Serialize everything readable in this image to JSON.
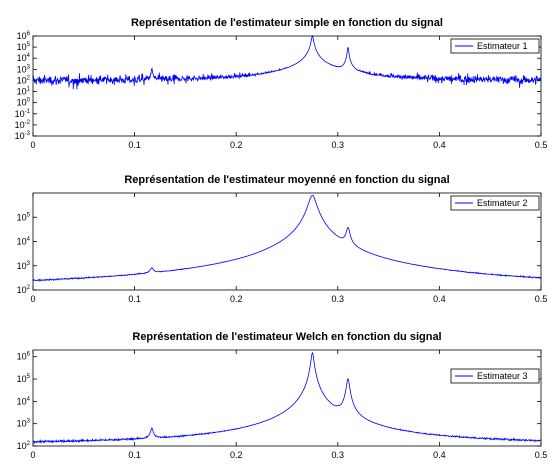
{
  "chart_data": [
    {
      "type": "line",
      "title": "Représentation de l'estimateur simple en fonction du signal",
      "xlabel": "",
      "ylabel": "",
      "xlim": [
        0,
        0.5
      ],
      "ylim": [
        0.001,
        1000000
      ],
      "yscale": "log",
      "grid": false,
      "legend_position": "top-right",
      "xticks": [
        "0",
        "0.1",
        "0.2",
        "0.3",
        "0.4",
        "0.5"
      ],
      "yticks": [
        {
          "base": "10",
          "exp": "-3",
          "value": 0.001
        },
        {
          "base": "10",
          "exp": "-2",
          "value": 0.01
        },
        {
          "base": "10",
          "exp": "-1",
          "value": 0.1
        },
        {
          "base": "10",
          "exp": "0",
          "value": 1
        },
        {
          "base": "10",
          "exp": "1",
          "value": 10
        },
        {
          "base": "10",
          "exp": "2",
          "value": 100
        },
        {
          "base": "10",
          "exp": "3",
          "value": 1000
        },
        {
          "base": "10",
          "exp": "4",
          "value": 10000
        },
        {
          "base": "10",
          "exp": "5",
          "value": 100000
        },
        {
          "base": "10",
          "exp": "6",
          "value": 1000000
        }
      ],
      "series": [
        {
          "name": "Estimateur 1",
          "color": "#0000ff",
          "noise_floor": 100,
          "noise_style": "raw",
          "peaks": [
            {
              "x": 0.117,
              "y": 1000
            },
            {
              "x": 0.275,
              "y": 1000000
            },
            {
              "x": 0.31,
              "y": 100000
            }
          ]
        }
      ]
    },
    {
      "type": "line",
      "title": "Représentation de l'estimateur moyenné en fonction du signal",
      "xlabel": "",
      "ylabel": "",
      "xlim": [
        0,
        0.5
      ],
      "ylim": [
        100,
        1000000
      ],
      "yscale": "log",
      "grid": false,
      "legend_position": "top-right",
      "xticks": [
        "0",
        "0.1",
        "0.2",
        "0.3",
        "0.4",
        "0.5"
      ],
      "yticks": [
        {
          "base": "10",
          "exp": "2",
          "value": 100
        },
        {
          "base": "10",
          "exp": "3",
          "value": 1000
        },
        {
          "base": "10",
          "exp": "4",
          "value": 10000
        },
        {
          "base": "10",
          "exp": "5",
          "value": 100000
        }
      ],
      "series": [
        {
          "name": "Estimateur 2",
          "color": "#0000ff",
          "noise_floor": 120,
          "noise_style": "smooth",
          "peaks": [
            {
              "x": 0.117,
              "y": 300
            },
            {
              "x": 0.275,
              "y": 800000
            },
            {
              "x": 0.31,
              "y": 30000
            },
            {
              "x": 0.3,
              "y": 250
            }
          ]
        }
      ]
    },
    {
      "type": "line",
      "title": "Représentation de l'estimateur Welch en fonction du signal",
      "xlabel": "",
      "ylabel": "",
      "xlim": [
        0,
        0.5
      ],
      "ylim": [
        100,
        2000000
      ],
      "yscale": "log",
      "grid": false,
      "legend_position": "top-right",
      "xticks": [
        "0",
        "0.1",
        "0.2",
        "0.3",
        "0.4",
        "0.5"
      ],
      "yticks": [
        {
          "base": "10",
          "exp": "2",
          "value": 100
        },
        {
          "base": "10",
          "exp": "3",
          "value": 1000
        },
        {
          "base": "10",
          "exp": "4",
          "value": 10000
        },
        {
          "base": "10",
          "exp": "5",
          "value": 100000
        },
        {
          "base": "10",
          "exp": "6",
          "value": 1000000
        }
      ],
      "series": [
        {
          "name": "Estimateur 3",
          "color": "#0000ff",
          "noise_floor": 120,
          "noise_style": "welch",
          "peaks": [
            {
              "x": 0.117,
              "y": 400
            },
            {
              "x": 0.265,
              "y": 600
            },
            {
              "x": 0.275,
              "y": 1500000
            },
            {
              "x": 0.31,
              "y": 100000
            },
            {
              "x": 0.3,
              "y": 300
            }
          ]
        }
      ]
    }
  ]
}
